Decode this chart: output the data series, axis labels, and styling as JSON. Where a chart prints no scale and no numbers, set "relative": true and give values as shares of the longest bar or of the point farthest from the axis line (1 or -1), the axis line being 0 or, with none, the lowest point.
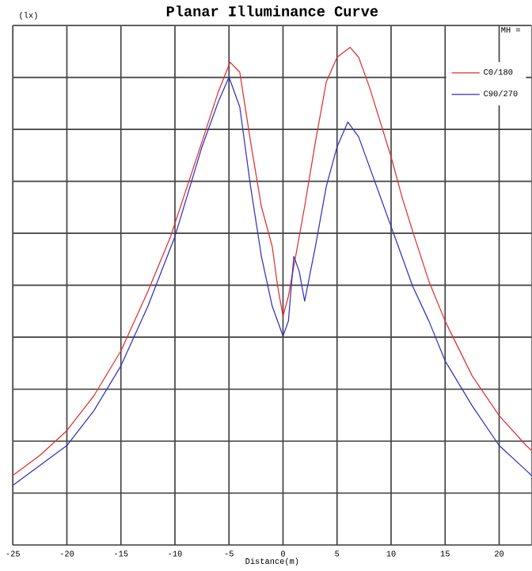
{
  "chart_data": {
    "type": "line",
    "title": "Planar Illuminance Curve",
    "xlabel": "Distance(m)",
    "ylabel": "(lx)",
    "annotations": [
      "MH ="
    ],
    "relative": true,
    "xlim": [
      -25,
      23
    ],
    "xticks": [
      -25,
      -20,
      -15,
      -10,
      -5,
      0,
      5,
      10,
      15,
      20
    ],
    "tick_labels": "x",
    "grid": true,
    "legend": "top right",
    "marker": "none",
    "line_style": "solid",
    "series": [
      {
        "name": "C0/180",
        "color": "#e03030",
        "x": [
          -25,
          -22.5,
          -20,
          -17.5,
          -15,
          -12.5,
          -10.4,
          -7.5,
          -6,
          -4.9,
          -4,
          -3,
          -2,
          -1,
          -0.5,
          0,
          0.5,
          1,
          2,
          3,
          4,
          5,
          6.2,
          7,
          8,
          9,
          10,
          11,
          12,
          13.5,
          15,
          17.5,
          20,
          22.5,
          23
        ],
        "values": [
          0.14,
          0.18,
          0.23,
          0.3,
          0.39,
          0.51,
          0.62,
          0.81,
          0.91,
          0.97,
          0.95,
          0.81,
          0.68,
          0.6,
          0.52,
          0.46,
          0.5,
          0.56,
          0.68,
          0.81,
          0.93,
          0.98,
          1.0,
          0.98,
          0.92,
          0.85,
          0.78,
          0.7,
          0.63,
          0.53,
          0.45,
          0.34,
          0.26,
          0.2,
          0.19
        ]
      },
      {
        "name": "C90/270",
        "color": "#3030c0",
        "x": [
          -25,
          -22.5,
          -20,
          -17.5,
          -15,
          -12.5,
          -10,
          -7.5,
          -6,
          -5,
          -4,
          -3,
          -2,
          -1,
          0,
          0.5,
          1,
          1.5,
          2,
          3,
          4,
          5,
          6,
          7,
          8,
          9,
          10,
          11,
          12,
          13.5,
          15,
          17.5,
          20,
          22.5,
          23
        ],
        "values": [
          0.12,
          0.16,
          0.2,
          0.27,
          0.36,
          0.48,
          0.62,
          0.8,
          0.89,
          0.94,
          0.88,
          0.72,
          0.58,
          0.48,
          0.42,
          0.45,
          0.58,
          0.55,
          0.49,
          0.6,
          0.72,
          0.8,
          0.85,
          0.82,
          0.76,
          0.7,
          0.64,
          0.58,
          0.52,
          0.45,
          0.37,
          0.28,
          0.2,
          0.15,
          0.14
        ]
      }
    ]
  }
}
